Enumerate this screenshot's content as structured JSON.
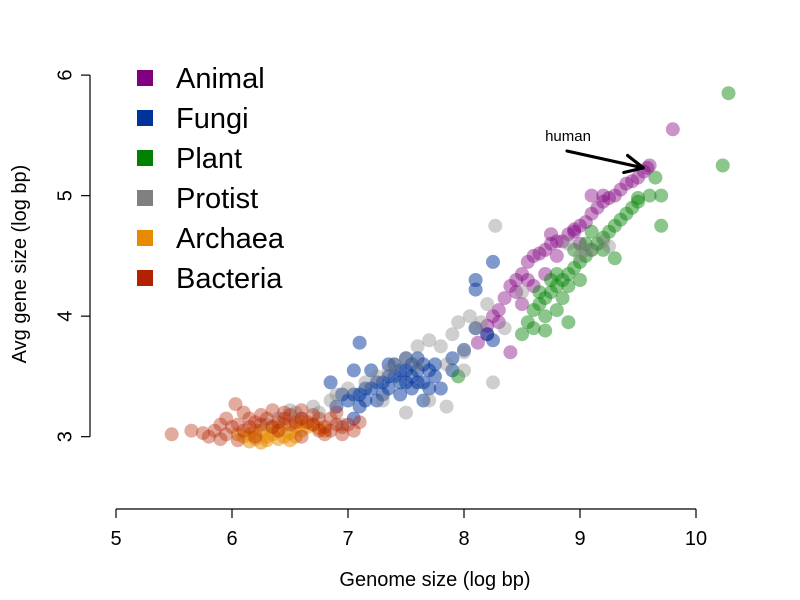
{
  "chart_data": {
    "type": "scatter",
    "title": "",
    "xlabel": "Genome size (log bp)",
    "ylabel": "Avg gene size (log bp)",
    "xlim": [
      5,
      10
    ],
    "ylim": [
      2.4,
      6.2
    ],
    "xticks": [
      5,
      6,
      7,
      8,
      9,
      10
    ],
    "yticks": [
      3,
      4,
      5,
      6
    ],
    "grid": false,
    "legend_position": "top-left",
    "annotations": [
      {
        "text": "human",
        "x": 9.58,
        "y": 5.23
      }
    ],
    "series": [
      {
        "name": "Animal",
        "color": "#800080",
        "points": [
          [
            8.12,
            3.78
          ],
          [
            8.2,
            3.92
          ],
          [
            8.25,
            4.0
          ],
          [
            8.3,
            4.05
          ],
          [
            8.35,
            4.15
          ],
          [
            8.4,
            4.25
          ],
          [
            8.45,
            4.3
          ],
          [
            8.5,
            4.35
          ],
          [
            8.55,
            4.45
          ],
          [
            8.6,
            4.5
          ],
          [
            8.65,
            4.52
          ],
          [
            8.7,
            4.55
          ],
          [
            8.75,
            4.6
          ],
          [
            8.8,
            4.62
          ],
          [
            8.85,
            4.62
          ],
          [
            8.9,
            4.68
          ],
          [
            8.95,
            4.72
          ],
          [
            9.0,
            4.75
          ],
          [
            9.05,
            4.78
          ],
          [
            9.1,
            4.85
          ],
          [
            9.15,
            4.9
          ],
          [
            9.2,
            4.95
          ],
          [
            9.25,
            4.98
          ],
          [
            9.3,
            5.0
          ],
          [
            9.35,
            5.05
          ],
          [
            9.4,
            5.1
          ],
          [
            9.45,
            5.12
          ],
          [
            9.5,
            5.15
          ],
          [
            9.55,
            5.2
          ],
          [
            9.58,
            5.23
          ],
          [
            9.6,
            5.25
          ],
          [
            9.8,
            5.55
          ],
          [
            8.4,
            3.7
          ],
          [
            8.5,
            4.1
          ],
          [
            8.6,
            4.25
          ],
          [
            8.7,
            4.35
          ],
          [
            8.8,
            4.5
          ],
          [
            9.0,
            4.6
          ],
          [
            9.1,
            5.0
          ],
          [
            9.2,
            5.0
          ],
          [
            8.3,
            3.95
          ],
          [
            8.45,
            4.2
          ],
          [
            8.95,
            4.7
          ],
          [
            8.2,
            3.85
          ],
          [
            8.55,
            4.3
          ],
          [
            8.75,
            4.68
          ]
        ]
      },
      {
        "name": "Fungi",
        "color": "#003399",
        "points": [
          [
            7.0,
            3.3
          ],
          [
            7.05,
            3.35
          ],
          [
            7.1,
            3.35
          ],
          [
            7.15,
            3.4
          ],
          [
            7.2,
            3.4
          ],
          [
            7.25,
            3.45
          ],
          [
            7.3,
            3.45
          ],
          [
            7.35,
            3.5
          ],
          [
            7.4,
            3.5
          ],
          [
            7.45,
            3.55
          ],
          [
            7.5,
            3.55
          ],
          [
            7.55,
            3.5
          ],
          [
            7.6,
            3.55
          ],
          [
            7.65,
            3.6
          ],
          [
            7.7,
            3.55
          ],
          [
            7.75,
            3.5
          ],
          [
            7.45,
            3.45
          ],
          [
            7.5,
            3.45
          ],
          [
            7.55,
            3.4
          ],
          [
            7.6,
            3.45
          ],
          [
            7.4,
            3.6
          ],
          [
            7.5,
            3.65
          ],
          [
            7.6,
            3.65
          ],
          [
            7.65,
            3.45
          ],
          [
            7.7,
            3.4
          ],
          [
            7.35,
            3.4
          ],
          [
            7.3,
            3.35
          ],
          [
            7.25,
            3.3
          ],
          [
            7.15,
            3.3
          ],
          [
            7.1,
            3.25
          ],
          [
            6.85,
            3.45
          ],
          [
            7.1,
            3.78
          ],
          [
            7.05,
            3.55
          ],
          [
            8.1,
            4.3
          ],
          [
            8.25,
            4.45
          ],
          [
            8.1,
            4.22
          ],
          [
            8.0,
            3.72
          ],
          [
            8.1,
            3.9
          ],
          [
            8.25,
            3.8
          ],
          [
            7.9,
            3.65
          ],
          [
            7.2,
            3.55
          ],
          [
            6.95,
            3.35
          ],
          [
            7.8,
            3.4
          ],
          [
            7.9,
            3.55
          ],
          [
            8.2,
            3.85
          ],
          [
            7.45,
            3.35
          ],
          [
            7.55,
            3.6
          ],
          [
            7.75,
            3.6
          ],
          [
            7.65,
            3.3
          ],
          [
            7.35,
            3.6
          ],
          [
            6.9,
            3.25
          ],
          [
            7.05,
            3.15
          ]
        ]
      },
      {
        "name": "Plant",
        "color": "#008000",
        "points": [
          [
            8.55,
            3.95
          ],
          [
            8.6,
            4.05
          ],
          [
            8.65,
            4.1
          ],
          [
            8.7,
            4.15
          ],
          [
            8.75,
            4.2
          ],
          [
            8.8,
            4.25
          ],
          [
            8.85,
            4.3
          ],
          [
            8.9,
            4.35
          ],
          [
            8.95,
            4.4
          ],
          [
            9.0,
            4.45
          ],
          [
            9.05,
            4.5
          ],
          [
            9.1,
            4.55
          ],
          [
            9.15,
            4.6
          ],
          [
            9.2,
            4.65
          ],
          [
            9.25,
            4.7
          ],
          [
            9.3,
            4.75
          ],
          [
            9.35,
            4.8
          ],
          [
            9.4,
            4.85
          ],
          [
            9.45,
            4.9
          ],
          [
            9.5,
            4.95
          ],
          [
            9.6,
            5.0
          ],
          [
            9.7,
            5.0
          ],
          [
            9.65,
            5.15
          ],
          [
            9.7,
            4.75
          ],
          [
            9.3,
            4.48
          ],
          [
            8.9,
            3.95
          ],
          [
            8.7,
            3.88
          ],
          [
            8.8,
            4.05
          ],
          [
            8.65,
            4.2
          ],
          [
            8.75,
            4.3
          ],
          [
            8.85,
            4.15
          ],
          [
            8.95,
            4.55
          ],
          [
            9.05,
            4.6
          ],
          [
            10.23,
            5.25
          ],
          [
            10.28,
            5.85
          ],
          [
            9.0,
            4.3
          ],
          [
            9.1,
            4.7
          ],
          [
            8.6,
            3.9
          ],
          [
            8.8,
            4.35
          ],
          [
            9.5,
            4.98
          ],
          [
            9.2,
            4.55
          ],
          [
            8.5,
            3.85
          ],
          [
            7.95,
            3.5
          ],
          [
            8.7,
            4.0
          ],
          [
            8.9,
            4.25
          ]
        ]
      },
      {
        "name": "Protist",
        "color": "#808080",
        "points": [
          [
            6.3,
            3.1
          ],
          [
            6.4,
            3.15
          ],
          [
            6.55,
            3.2
          ],
          [
            6.6,
            3.15
          ],
          [
            6.7,
            3.25
          ],
          [
            6.75,
            3.2
          ],
          [
            6.85,
            3.3
          ],
          [
            6.9,
            3.35
          ],
          [
            7.0,
            3.4
          ],
          [
            7.15,
            3.45
          ],
          [
            7.25,
            3.5
          ],
          [
            7.35,
            3.55
          ],
          [
            7.4,
            3.6
          ],
          [
            7.5,
            3.65
          ],
          [
            7.6,
            3.75
          ],
          [
            7.7,
            3.8
          ],
          [
            7.8,
            3.75
          ],
          [
            7.9,
            3.85
          ],
          [
            7.95,
            3.95
          ],
          [
            8.1,
            3.9
          ],
          [
            8.25,
            3.45
          ],
          [
            8.27,
            4.75
          ],
          [
            7.85,
            3.25
          ],
          [
            8.0,
            3.55
          ],
          [
            8.0,
            3.7
          ],
          [
            8.05,
            4.0
          ],
          [
            8.2,
            4.1
          ],
          [
            8.5,
            4.2
          ],
          [
            8.9,
            4.6
          ],
          [
            9.0,
            4.5
          ],
          [
            9.05,
            4.55
          ],
          [
            9.1,
            4.55
          ],
          [
            9.2,
            4.62
          ],
          [
            9.25,
            4.58
          ],
          [
            6.5,
            3.22
          ],
          [
            6.95,
            3.1
          ],
          [
            7.3,
            3.3
          ],
          [
            7.7,
            3.3
          ],
          [
            7.5,
            3.2
          ],
          [
            7.6,
            3.6
          ],
          [
            8.15,
            3.95
          ],
          [
            7.85,
            3.6
          ],
          [
            8.35,
            3.9
          ]
        ]
      },
      {
        "name": "Archaea",
        "color": "#E68A00",
        "points": [
          [
            6.1,
            3.0
          ],
          [
            6.15,
            3.02
          ],
          [
            6.2,
            2.98
          ],
          [
            6.25,
            3.05
          ],
          [
            6.3,
            3.0
          ],
          [
            6.35,
            3.02
          ],
          [
            6.4,
            3.05
          ],
          [
            6.45,
            3.0
          ],
          [
            6.5,
            3.03
          ],
          [
            6.55,
            3.08
          ],
          [
            6.6,
            3.05
          ],
          [
            6.65,
            3.08
          ],
          [
            6.7,
            3.1
          ],
          [
            6.75,
            3.07
          ],
          [
            6.3,
            2.97
          ],
          [
            6.2,
            3.05
          ],
          [
            6.35,
            3.08
          ],
          [
            6.45,
            3.1
          ],
          [
            6.55,
            3.0
          ],
          [
            6.15,
            2.96
          ],
          [
            6.25,
            2.95
          ],
          [
            6.4,
            2.98
          ],
          [
            6.05,
            3.02
          ],
          [
            6.6,
            3.12
          ],
          [
            6.5,
            2.97
          ],
          [
            6.8,
            3.05
          ]
        ]
      },
      {
        "name": "Bacteria",
        "color": "#B22200",
        "points": [
          [
            5.48,
            3.02
          ],
          [
            5.65,
            3.05
          ],
          [
            5.75,
            3.03
          ],
          [
            5.85,
            3.05
          ],
          [
            5.9,
            3.1
          ],
          [
            5.95,
            3.02
          ],
          [
            6.0,
            3.08
          ],
          [
            6.05,
            3.1
          ],
          [
            6.1,
            3.05
          ],
          [
            6.15,
            3.08
          ],
          [
            6.2,
            3.12
          ],
          [
            6.25,
            3.1
          ],
          [
            6.3,
            3.15
          ],
          [
            6.35,
            3.08
          ],
          [
            6.4,
            3.12
          ],
          [
            6.45,
            3.15
          ],
          [
            6.5,
            3.1
          ],
          [
            6.55,
            3.12
          ],
          [
            6.6,
            3.15
          ],
          [
            6.65,
            3.12
          ],
          [
            6.7,
            3.1
          ],
          [
            6.75,
            3.05
          ],
          [
            6.8,
            3.08
          ],
          [
            6.85,
            3.05
          ],
          [
            6.9,
            3.1
          ],
          [
            6.95,
            3.08
          ],
          [
            7.0,
            3.1
          ],
          [
            7.05,
            3.05
          ],
          [
            6.03,
            3.27
          ],
          [
            6.1,
            3.2
          ],
          [
            6.35,
            3.22
          ],
          [
            6.45,
            3.2
          ],
          [
            6.6,
            3.22
          ],
          [
            6.7,
            3.18
          ],
          [
            6.85,
            3.15
          ],
          [
            5.9,
            2.98
          ],
          [
            6.05,
            2.97
          ],
          [
            6.2,
            3.0
          ],
          [
            6.4,
            3.05
          ],
          [
            6.6,
            3.0
          ],
          [
            6.8,
            3.02
          ],
          [
            7.1,
            3.12
          ],
          [
            5.95,
            3.15
          ],
          [
            6.15,
            3.15
          ],
          [
            6.5,
            3.18
          ],
          [
            6.95,
            3.02
          ],
          [
            5.8,
            3.0
          ],
          [
            6.25,
            3.18
          ],
          [
            6.75,
            3.15
          ],
          [
            6.9,
            3.2
          ]
        ]
      }
    ]
  }
}
